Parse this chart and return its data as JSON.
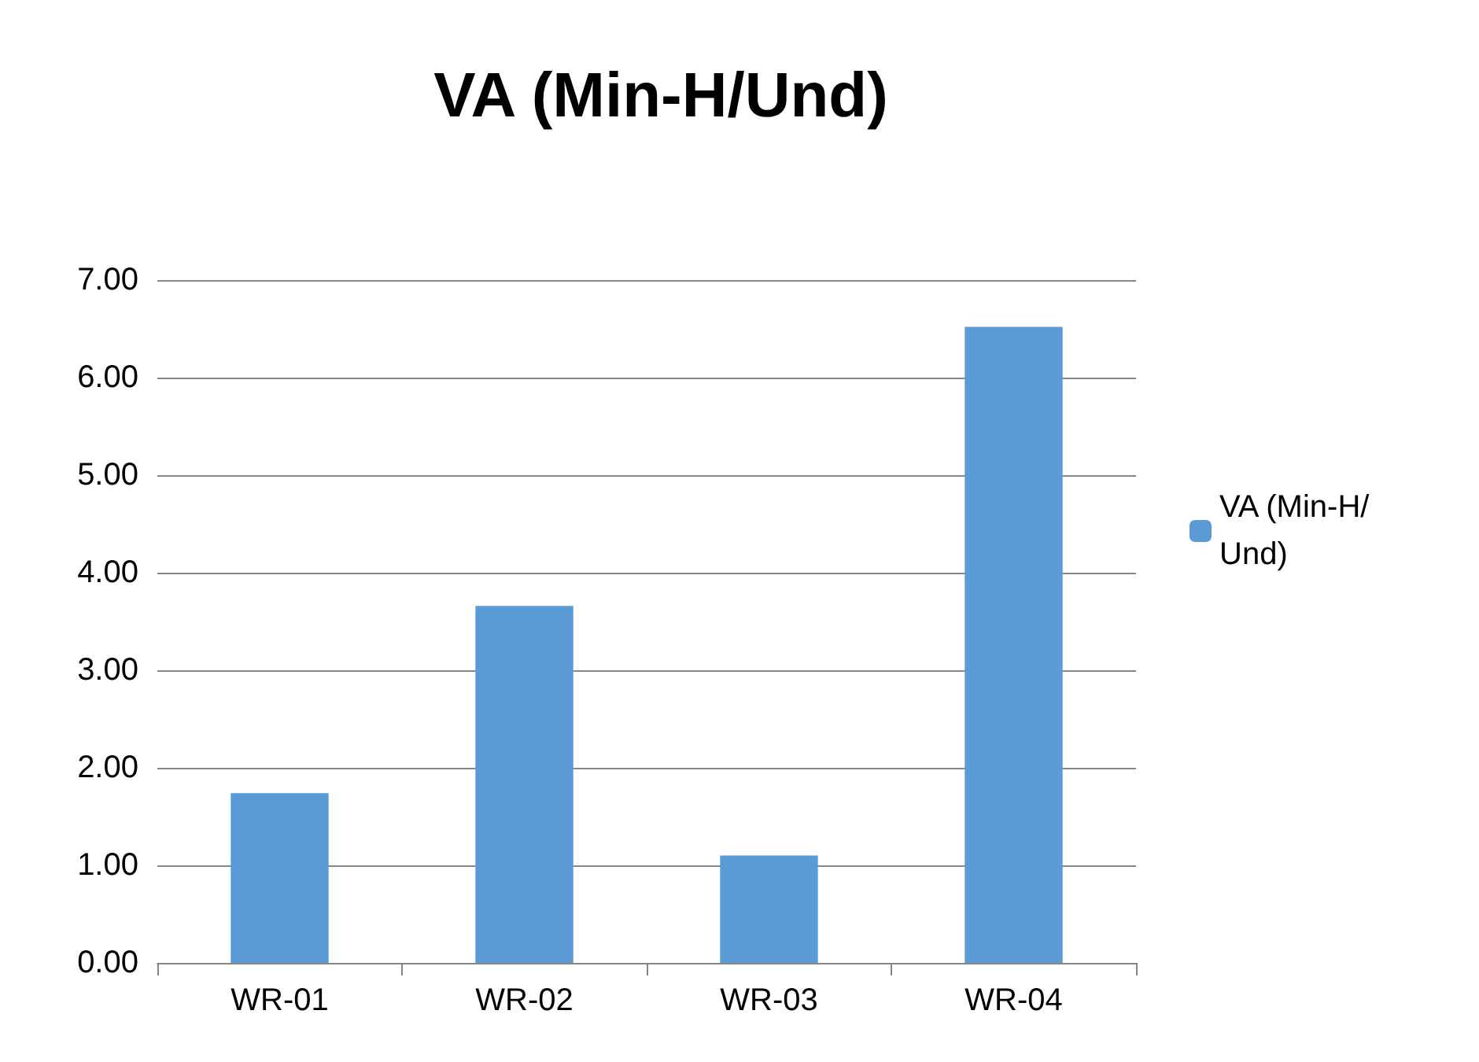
{
  "chart_data": {
    "type": "bar",
    "title": "VA (Min-H/Und)",
    "categories": [
      "WR-01",
      "WR-02",
      "WR-03",
      "WR-04"
    ],
    "series": [
      {
        "name": "VA (Min-H/Und)",
        "color": "#5b9bd5",
        "values": [
          1.74,
          3.66,
          1.1,
          6.52
        ]
      }
    ],
    "ylim": [
      0,
      7
    ],
    "yticks": [
      {
        "value": 0,
        "label": "0.00"
      },
      {
        "value": 1,
        "label": "1.00"
      },
      {
        "value": 2,
        "label": "2.00"
      },
      {
        "value": 3,
        "label": "3.00"
      },
      {
        "value": 4,
        "label": "4.00"
      },
      {
        "value": 5,
        "label": "5.00"
      },
      {
        "value": 6,
        "label": "6.00"
      },
      {
        "value": 7,
        "label": "7.00"
      }
    ],
    "grid": "y",
    "legend": "right"
  }
}
